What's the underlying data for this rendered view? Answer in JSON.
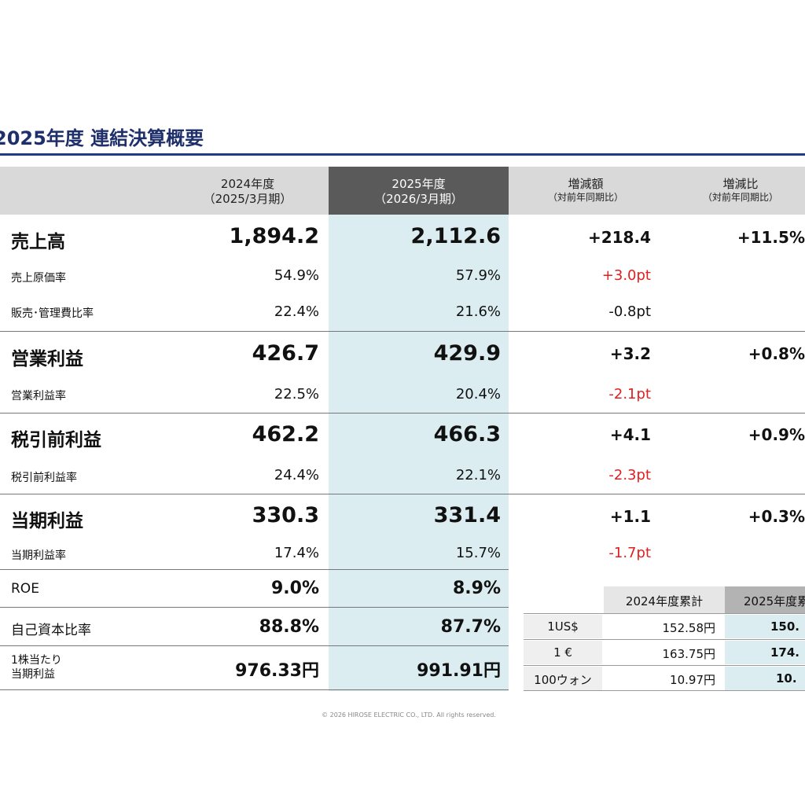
{
  "title": "2025年度  連結決算概要",
  "headers": {
    "prev_l1": "2024年度",
    "prev_l2": "（2025/3月期）",
    "cur_l1": "2025年度",
    "cur_l2": "（2026/3月期）",
    "diff_l1": "増減額",
    "diff_l2": "（対前年同期比）",
    "ratio_l1": "増減比",
    "ratio_l2": "（対前年同期比）"
  },
  "rows": {
    "sales": {
      "label": "売上高",
      "prev": "1,894.2",
      "cur": "2,112.6",
      "diff": "+218.4",
      "ratio": "+11.5%"
    },
    "cogs": {
      "label": "売上原価率",
      "prev": "54.9%",
      "cur": "57.9%",
      "diff": "+3.0pt"
    },
    "sga": {
      "label": "販売･管理費比率",
      "prev": "22.4%",
      "cur": "21.6%",
      "diff": "-0.8pt"
    },
    "op": {
      "label": "営業利益",
      "prev": "426.7",
      "cur": "429.9",
      "diff": "+3.2",
      "ratio": "+0.8%"
    },
    "op_rate": {
      "label": "営業利益率",
      "prev": "22.5%",
      "cur": "20.4%",
      "diff": "-2.1pt"
    },
    "pretax": {
      "label": "税引前利益",
      "prev": "462.2",
      "cur": "466.3",
      "diff": "+4.1",
      "ratio": "+0.9%"
    },
    "pretax_rate": {
      "label": "税引前利益率",
      "prev": "24.4%",
      "cur": "22.1%",
      "diff": "-2.3pt"
    },
    "net": {
      "label": "当期利益",
      "prev": "330.3",
      "cur": "331.4",
      "diff": "+1.1",
      "ratio": "+0.3%"
    },
    "net_rate": {
      "label": "当期利益率",
      "prev": "17.4%",
      "cur": "15.7%",
      "diff": "-1.7pt"
    },
    "roe": {
      "label": "ROE",
      "prev": "9.0%",
      "cur": "8.9%"
    },
    "equity": {
      "label": "自己資本比率",
      "prev": "88.8%",
      "cur": "87.7%"
    },
    "eps": {
      "label_l1": "1株当たり",
      "label_l2": "当期利益",
      "prev": "976.33円",
      "cur": "991.91円"
    }
  },
  "fx": {
    "header_prev": "2024年度累計",
    "header_cur": "2025年度累",
    "rows": [
      {
        "label": "1US$",
        "prev": "152.58円",
        "cur": "150."
      },
      {
        "label": "1 €",
        "prev": "163.75円",
        "cur": "174."
      },
      {
        "label": "100ウォン",
        "prev": "10.97円",
        "cur": "10."
      }
    ]
  },
  "colors": {
    "title": "#1f2f6b",
    "rule": "#1f3c88",
    "negative": "#e02020",
    "highlight": "#dbedf0"
  },
  "footer": "© 2026 HIROSE ELECTRIC CO., LTD. All rights reserved."
}
